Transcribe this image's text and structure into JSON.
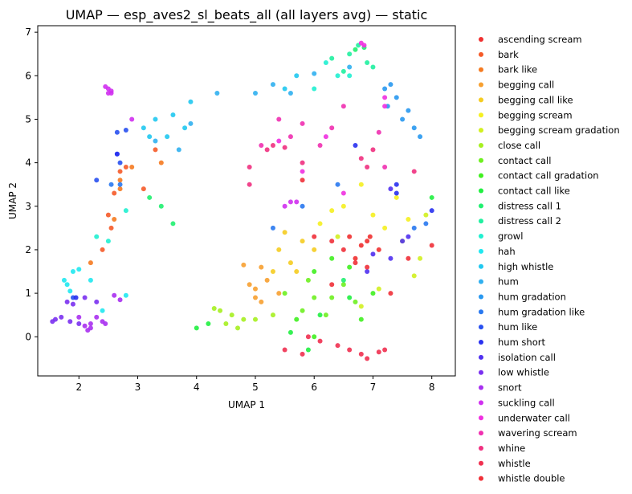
{
  "chart_data": {
    "type": "scatter",
    "title": "UMAP — esp_aves2_sl_beats_all (all layers avg) — static",
    "xlabel": "UMAP 1",
    "ylabel": "UMAP 2",
    "xlim": [
      1.3,
      8.4
    ],
    "ylim": [
      -0.9,
      7.15
    ],
    "xticks": [
      "2",
      "3",
      "4",
      "5",
      "6",
      "7",
      "8"
    ],
    "yticks": [
      "0",
      "1",
      "2",
      "3",
      "4",
      "5",
      "6",
      "7"
    ],
    "grid": false,
    "legend_position": "outside-right",
    "series": [
      {
        "name": "ascending scream",
        "color": "#f03030",
        "points": [
          [
            6.8,
            2.1
          ],
          [
            6.9,
            2.2
          ],
          [
            6.6,
            2.3
          ],
          [
            7.1,
            2.0
          ],
          [
            6.7,
            1.8
          ],
          [
            6.95,
            2.3
          ]
        ]
      },
      {
        "name": "bark",
        "color": "#f55a28",
        "points": [
          [
            2.7,
            3.8
          ],
          [
            2.8,
            3.9
          ],
          [
            2.6,
            3.3
          ],
          [
            2.5,
            2.8
          ],
          [
            2.4,
            2.0
          ],
          [
            3.3,
            4.3
          ],
          [
            3.1,
            3.4
          ],
          [
            2.55,
            2.5
          ]
        ]
      },
      {
        "name": "bark like",
        "color": "#f57a20",
        "points": [
          [
            2.2,
            1.7
          ],
          [
            2.6,
            2.7
          ],
          [
            2.7,
            3.4
          ],
          [
            2.9,
            3.9
          ],
          [
            2.7,
            3.6
          ],
          [
            3.4,
            4.0
          ]
        ]
      },
      {
        "name": "begging call",
        "color": "#f7a030",
        "points": [
          [
            5.0,
            1.1
          ],
          [
            5.2,
            1.3
          ],
          [
            5.1,
            1.6
          ],
          [
            4.8,
            1.65
          ],
          [
            5.0,
            0.9
          ],
          [
            4.9,
            1.2
          ],
          [
            5.4,
            1.0
          ],
          [
            5.1,
            0.8
          ]
        ]
      },
      {
        "name": "begging call like",
        "color": "#f5cc20",
        "points": [
          [
            5.4,
            2.0
          ],
          [
            5.5,
            2.4
          ],
          [
            5.6,
            1.7
          ],
          [
            5.3,
            1.5
          ],
          [
            5.8,
            2.2
          ],
          [
            6.0,
            2.0
          ],
          [
            5.7,
            1.5
          ]
        ]
      },
      {
        "name": "begging scream",
        "color": "#f5f020",
        "points": [
          [
            6.3,
            2.9
          ],
          [
            6.5,
            3.0
          ],
          [
            6.8,
            3.5
          ],
          [
            7.0,
            2.8
          ],
          [
            7.2,
            2.5
          ],
          [
            7.4,
            3.2
          ],
          [
            7.6,
            2.7
          ],
          [
            6.1,
            2.6
          ]
        ]
      },
      {
        "name": "begging scream gradation",
        "color": "#d2f020",
        "points": [
          [
            7.5,
            2.2
          ],
          [
            7.8,
            1.8
          ],
          [
            7.7,
            1.4
          ],
          [
            6.4,
            2.3
          ],
          [
            7.1,
            1.1
          ],
          [
            7.9,
            2.8
          ],
          [
            6.8,
            0.7
          ]
        ]
      },
      {
        "name": "close call",
        "color": "#a6f020",
        "points": [
          [
            4.4,
            0.6
          ],
          [
            4.6,
            0.5
          ],
          [
            4.8,
            0.4
          ],
          [
            4.5,
            0.3
          ],
          [
            5.0,
            0.4
          ],
          [
            5.3,
            0.5
          ],
          [
            4.3,
            0.65
          ],
          [
            4.7,
            0.2
          ]
        ]
      },
      {
        "name": "contact call",
        "color": "#6ef020",
        "points": [
          [
            5.5,
            1.0
          ],
          [
            5.8,
            0.6
          ],
          [
            6.0,
            0.9
          ],
          [
            6.2,
            0.5
          ],
          [
            6.5,
            1.2
          ],
          [
            5.9,
            1.3
          ],
          [
            6.3,
            0.9
          ],
          [
            6.7,
            0.8
          ]
        ]
      },
      {
        "name": "contact call gradation",
        "color": "#40f020",
        "points": [
          [
            6.0,
            1.5
          ],
          [
            6.3,
            1.8
          ],
          [
            6.6,
            1.6
          ],
          [
            5.7,
            0.4
          ],
          [
            6.0,
            0.0
          ],
          [
            6.8,
            0.4
          ],
          [
            7.0,
            1.0
          ]
        ]
      },
      {
        "name": "contact call like",
        "color": "#20f040",
        "points": [
          [
            4.0,
            0.2
          ],
          [
            4.2,
            0.3
          ],
          [
            5.6,
            0.1
          ],
          [
            5.9,
            -0.3
          ],
          [
            6.1,
            0.5
          ],
          [
            6.6,
            0.9
          ],
          [
            8.0,
            3.2
          ]
        ]
      },
      {
        "name": "distress call 1",
        "color": "#20f070",
        "points": [
          [
            3.2,
            3.2
          ],
          [
            3.6,
            2.6
          ],
          [
            3.4,
            3.0
          ],
          [
            6.5,
            1.3
          ],
          [
            6.7,
            6.6
          ],
          [
            6.85,
            6.65
          ]
        ]
      },
      {
        "name": "distress call 2",
        "color": "#20f0a0",
        "points": [
          [
            6.3,
            6.4
          ],
          [
            6.6,
            6.5
          ],
          [
            6.75,
            6.7
          ],
          [
            6.9,
            6.3
          ],
          [
            6.5,
            6.1
          ],
          [
            7.0,
            6.2
          ]
        ]
      },
      {
        "name": "growl",
        "color": "#20f0d0",
        "points": [
          [
            2.3,
            2.3
          ],
          [
            2.5,
            2.2
          ],
          [
            2.8,
            2.9
          ],
          [
            6.0,
            5.7
          ],
          [
            6.4,
            6.0
          ],
          [
            6.2,
            6.3
          ],
          [
            6.6,
            6.0
          ]
        ]
      },
      {
        "name": "hah",
        "color": "#20e8f0",
        "points": [
          [
            1.8,
            1.2
          ],
          [
            1.75,
            1.3
          ],
          [
            1.9,
            1.5
          ],
          [
            2.0,
            1.55
          ],
          [
            2.2,
            1.3
          ],
          [
            2.4,
            0.6
          ],
          [
            2.8,
            0.95
          ],
          [
            1.85,
            1.05
          ]
        ]
      },
      {
        "name": "high whistle",
        "color": "#20c8f0",
        "points": [
          [
            3.1,
            4.8
          ],
          [
            3.2,
            4.6
          ],
          [
            3.3,
            5.0
          ],
          [
            3.6,
            5.1
          ],
          [
            3.8,
            4.8
          ],
          [
            3.9,
            5.4
          ],
          [
            3.5,
            4.6
          ],
          [
            5.7,
            6.0
          ],
          [
            5.5,
            5.7
          ]
        ]
      },
      {
        "name": "hum",
        "color": "#30b0f0",
        "points": [
          [
            3.3,
            4.5
          ],
          [
            3.7,
            4.3
          ],
          [
            3.9,
            4.9
          ],
          [
            4.35,
            5.6
          ],
          [
            5.0,
            5.6
          ],
          [
            5.3,
            5.8
          ],
          [
            5.6,
            5.6
          ],
          [
            6.0,
            6.05
          ],
          [
            6.6,
            6.2
          ]
        ]
      },
      {
        "name": "hum gradation",
        "color": "#2898f0",
        "points": [
          [
            7.2,
            5.7
          ],
          [
            7.3,
            5.8
          ],
          [
            7.4,
            5.5
          ],
          [
            7.6,
            5.2
          ],
          [
            7.7,
            4.8
          ],
          [
            7.8,
            4.6
          ],
          [
            7.25,
            5.3
          ],
          [
            7.5,
            5.0
          ]
        ]
      },
      {
        "name": "hum gradation like",
        "color": "#2878f0",
        "points": [
          [
            2.55,
            3.5
          ],
          [
            2.7,
            3.5
          ],
          [
            5.8,
            3.0
          ],
          [
            5.3,
            2.5
          ],
          [
            6.4,
            3.5
          ],
          [
            7.7,
            2.5
          ],
          [
            7.9,
            2.6
          ]
        ]
      },
      {
        "name": "hum like",
        "color": "#2850f0",
        "points": [
          [
            2.65,
            4.7
          ],
          [
            2.8,
            4.75
          ],
          [
            2.65,
            4.2
          ],
          [
            2.7,
            4.0
          ],
          [
            1.9,
            0.9
          ],
          [
            2.3,
            3.6
          ]
        ]
      },
      {
        "name": "hum short",
        "color": "#2830f0",
        "points": [
          [
            2.65,
            4.2
          ],
          [
            7.4,
            3.3
          ],
          [
            7.4,
            3.5
          ],
          [
            6.7,
            4.4
          ],
          [
            1.95,
            0.9
          ],
          [
            8.0,
            2.9
          ]
        ]
      },
      {
        "name": "isolation call",
        "color": "#5030f0",
        "points": [
          [
            7.6,
            2.3
          ],
          [
            7.3,
            3.4
          ],
          [
            7.0,
            1.9
          ],
          [
            7.5,
            2.2
          ],
          [
            6.9,
            1.5
          ],
          [
            7.3,
            1.8
          ]
        ]
      },
      {
        "name": "low whistle",
        "color": "#7a30f0",
        "points": [
          [
            1.6,
            0.4
          ],
          [
            1.7,
            0.45
          ],
          [
            1.8,
            0.8
          ],
          [
            1.9,
            0.75
          ],
          [
            2.1,
            0.9
          ],
          [
            2.3,
            0.8
          ],
          [
            1.85,
            0.35
          ],
          [
            2.0,
            0.3
          ],
          [
            1.55,
            0.35
          ]
        ]
      },
      {
        "name": "snort",
        "color": "#a830f0",
        "points": [
          [
            2.1,
            0.25
          ],
          [
            2.15,
            0.15
          ],
          [
            2.2,
            0.3
          ],
          [
            2.3,
            0.45
          ],
          [
            2.4,
            0.35
          ],
          [
            2.2,
            0.2
          ],
          [
            2.45,
            0.3
          ],
          [
            2.0,
            0.45
          ],
          [
            2.6,
            0.95
          ],
          [
            2.7,
            0.85
          ]
        ]
      },
      {
        "name": "suckling call",
        "color": "#d030f0",
        "points": [
          [
            2.45,
            5.75
          ],
          [
            2.5,
            5.7
          ],
          [
            2.55,
            5.65
          ],
          [
            2.5,
            5.6
          ],
          [
            2.55,
            5.6
          ],
          [
            2.9,
            5.0
          ],
          [
            5.6,
            3.1
          ],
          [
            5.7,
            3.1
          ],
          [
            5.5,
            3.0
          ]
        ]
      },
      {
        "name": "underwater call",
        "color": "#f030e0",
        "points": [
          [
            6.8,
            6.75
          ],
          [
            6.85,
            6.7
          ],
          [
            7.2,
            5.5
          ],
          [
            7.2,
            5.3
          ],
          [
            6.5,
            3.3
          ],
          [
            5.8,
            3.8
          ],
          [
            5.4,
            4.5
          ],
          [
            6.2,
            4.6
          ]
        ]
      },
      {
        "name": "wavering scream",
        "color": "#f030b0",
        "points": [
          [
            5.4,
            5.0
          ],
          [
            5.8,
            4.9
          ],
          [
            6.1,
            4.4
          ],
          [
            5.1,
            4.4
          ],
          [
            5.6,
            4.6
          ],
          [
            6.3,
            4.8
          ],
          [
            6.5,
            5.3
          ],
          [
            7.1,
            4.7
          ],
          [
            7.2,
            3.9
          ]
        ]
      },
      {
        "name": "whine",
        "color": "#f03080",
        "points": [
          [
            5.2,
            4.3
          ],
          [
            5.3,
            4.4
          ],
          [
            5.5,
            4.35
          ],
          [
            4.9,
            3.9
          ],
          [
            4.9,
            3.5
          ],
          [
            6.8,
            4.1
          ],
          [
            7.0,
            4.3
          ],
          [
            7.7,
            3.8
          ],
          [
            6.9,
            3.9
          ],
          [
            5.8,
            4.0
          ]
        ]
      },
      {
        "name": "whistle",
        "color": "#f03050",
        "points": [
          [
            5.9,
            0.0
          ],
          [
            6.1,
            -0.1
          ],
          [
            6.4,
            -0.2
          ],
          [
            6.6,
            -0.3
          ],
          [
            6.8,
            -0.4
          ],
          [
            6.9,
            -0.5
          ],
          [
            7.1,
            -0.35
          ],
          [
            7.2,
            -0.3
          ],
          [
            5.5,
            -0.3
          ],
          [
            5.8,
            -0.4
          ]
        ]
      },
      {
        "name": "whistle double",
        "color": "#f03038",
        "points": [
          [
            6.3,
            2.2
          ],
          [
            6.5,
            2.0
          ],
          [
            6.7,
            1.7
          ],
          [
            6.9,
            1.6
          ],
          [
            7.3,
            1.0
          ],
          [
            6.0,
            2.3
          ],
          [
            6.3,
            1.2
          ],
          [
            5.8,
            3.6
          ],
          [
            7.6,
            1.8
          ],
          [
            8.0,
            2.1
          ]
        ]
      }
    ]
  }
}
